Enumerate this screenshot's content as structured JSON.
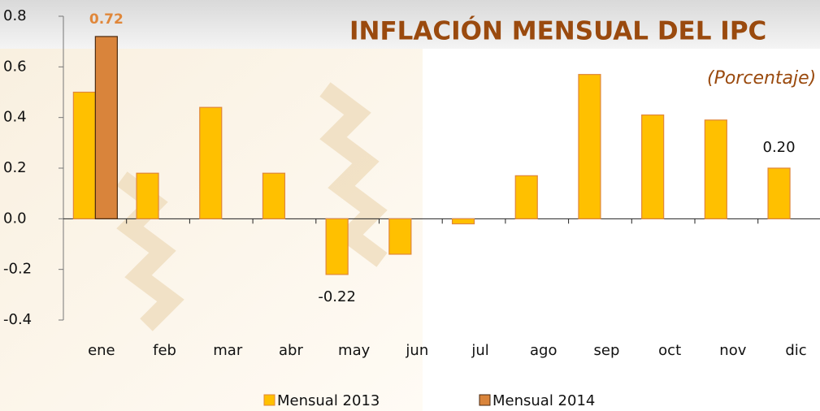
{
  "chart_data": {
    "type": "bar",
    "title": "INFLACIÓN  MENSUAL DEL IPC",
    "subtitle": "(Porcentaje)",
    "categories": [
      "ene",
      "feb",
      "mar",
      "abr",
      "may",
      "jun",
      "jul",
      "ago",
      "sep",
      "oct",
      "nov",
      "dic"
    ],
    "series": [
      {
        "name": "Mensual 2013",
        "color": "#ffc000",
        "values": [
          0.5,
          0.18,
          0.44,
          0.18,
          -0.22,
          -0.14,
          -0.02,
          0.17,
          0.57,
          0.41,
          0.39,
          0.2
        ],
        "value_labels": [
          null,
          null,
          null,
          null,
          "-0.22",
          null,
          null,
          null,
          null,
          null,
          null,
          "0.20"
        ]
      },
      {
        "name": "Mensual 2014",
        "color": "#d9843b",
        "values": [
          0.72,
          null,
          null,
          null,
          null,
          null,
          null,
          null,
          null,
          null,
          null,
          null
        ],
        "value_labels": [
          "0.72",
          null,
          null,
          null,
          null,
          null,
          null,
          null,
          null,
          null,
          null,
          null
        ]
      }
    ],
    "ylim": [
      -0.4,
      0.8
    ],
    "yticks": [
      -0.4,
      -0.2,
      {
        "value": 0,
        "label": "0.0"
      },
      0.2,
      0.4,
      0.6,
      0.8
    ]
  }
}
